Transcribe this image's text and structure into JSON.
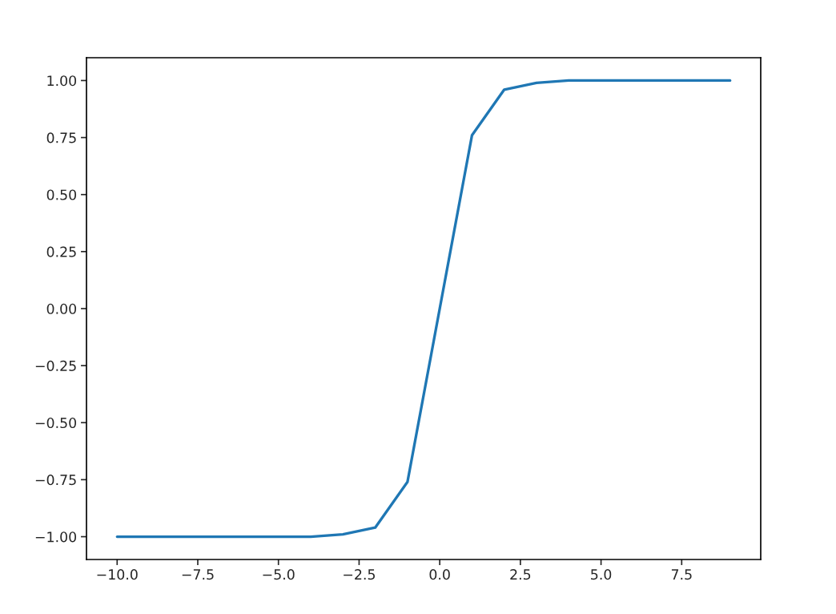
{
  "chart_data": {
    "type": "line",
    "x": [
      -10,
      -9,
      -8,
      -7,
      -6,
      -5,
      -4,
      -3,
      -2,
      -1,
      0,
      1,
      2,
      3,
      4,
      5,
      6,
      7,
      8,
      9
    ],
    "series": [
      {
        "color": "#1f77b4",
        "values": [
          -1.0,
          -1.0,
          -1.0,
          -1.0,
          -1.0,
          -1.0,
          -1.0,
          -0.99,
          -0.96,
          -0.76,
          0.0,
          0.76,
          0.96,
          0.99,
          1.0,
          1.0,
          1.0,
          1.0,
          1.0,
          1.0
        ]
      }
    ],
    "xlim": [
      -10.95,
      9.95
    ],
    "ylim": [
      -1.1,
      1.1
    ],
    "xticks": [
      {
        "value": -10,
        "label": "−10.0"
      },
      {
        "value": -7.5,
        "label": "−7.5"
      },
      {
        "value": -5,
        "label": "−5.0"
      },
      {
        "value": -2.5,
        "label": "−2.5"
      },
      {
        "value": 0,
        "label": "0.0"
      },
      {
        "value": 2.5,
        "label": "2.5"
      },
      {
        "value": 5,
        "label": "5.0"
      },
      {
        "value": 7.5,
        "label": "7.5"
      }
    ],
    "yticks": [
      {
        "value": -1,
        "label": "−1.00"
      },
      {
        "value": -0.75,
        "label": "−0.75"
      },
      {
        "value": -0.5,
        "label": "−0.50"
      },
      {
        "value": -0.25,
        "label": "−0.25"
      },
      {
        "value": 0,
        "label": "0.00"
      },
      {
        "value": 0.25,
        "label": "0.25"
      },
      {
        "value": 0.5,
        "label": "0.50"
      },
      {
        "value": 0.75,
        "label": "0.75"
      },
      {
        "value": 1,
        "label": "1.00"
      }
    ],
    "grid": false
  }
}
